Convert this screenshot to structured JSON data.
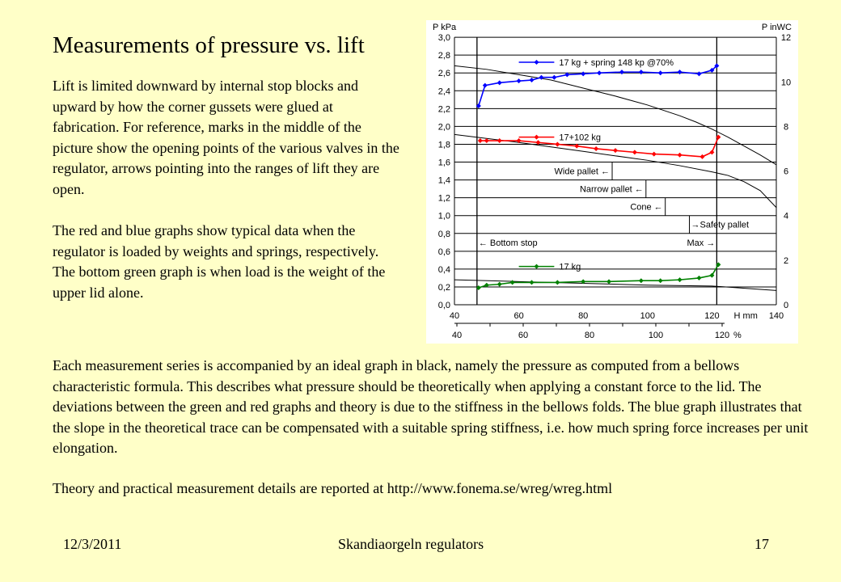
{
  "slide": {
    "title": "Measurements of pressure vs. lift",
    "paragraph1": "Lift is limited downward by internal stop blocks and upward by how the corner gussets were glued at fabrication. For reference, marks in the middle of the picture show the opening points of the various valves in the regulator, arrows pointing into the ranges of lift they are open.",
    "paragraph2": "The red and blue graphs show typical data when the regulator is loaded by weights and springs, respectively. The bottom green graph is when load is the weight of the upper lid alone.",
    "paragraph3": "Each measurement series is accompanied by an ideal graph in black, namely the pressure as computed from a bellows characteristic formula. This describes what pressure should be theoretically when applying a constant force to the lid. The deviations between the green and red graphs and theory is due to the stiffness in the bellows folds. The blue graph illustrates that the slope in the theoretical trace can be compensated with a suitable spring stiffness, i.e. how much spring force increases per unit elongation.",
    "paragraph4": "Theory and practical measurement  details are reported at http://www.fonema.se/wreg/wreg.html",
    "footer": {
      "date": "12/3/2011",
      "center": "Skandiaorgeln regulators",
      "page": "17"
    },
    "background": "#ffffc8"
  },
  "chart_data": {
    "type": "line",
    "xlabel": "H mm",
    "ylabel_left": "P kPa",
    "ylabel_right": "P inWC",
    "xlabel_secondary": "%",
    "xlim": [
      40,
      140
    ],
    "ylim": [
      0,
      3.0
    ],
    "ylim_right": [
      0,
      12
    ],
    "x_ticks": [
      "40",
      "60",
      "80",
      "100",
      "120",
      "140"
    ],
    "y_ticks": [
      "0,0",
      "0,2",
      "0,4",
      "0,6",
      "0,8",
      "1,0",
      "1,2",
      "1,4",
      "1,6",
      "1,8",
      "2,0",
      "2,2",
      "2,4",
      "2,6",
      "2,8",
      "3,0"
    ],
    "y_right_ticks": [
      "0",
      "2",
      "4",
      "6",
      "8",
      "10",
      "12"
    ],
    "pct_ticks": [
      "40",
      "60",
      "80",
      "100",
      "120"
    ],
    "grid": "horizontal",
    "series": [
      {
        "name": "17 kg + spring 148 kp @70%",
        "color": "#0000ff",
        "x": [
          47.5,
          49.5,
          54,
          60,
          64,
          67,
          71,
          75,
          80,
          85,
          92,
          98,
          104,
          110,
          116,
          120,
          121.5
        ],
        "y": [
          2.23,
          2.46,
          2.49,
          2.51,
          2.52,
          2.55,
          2.55,
          2.58,
          2.59,
          2.6,
          2.61,
          2.61,
          2.6,
          2.61,
          2.59,
          2.63,
          2.68
        ]
      },
      {
        "name": "17+102 kg",
        "color": "#ff0000",
        "x": [
          48,
          50,
          54,
          60,
          66,
          72,
          78,
          84,
          90,
          96,
          102,
          110,
          117,
          120,
          122
        ],
        "y": [
          1.84,
          1.84,
          1.84,
          1.84,
          1.82,
          1.8,
          1.78,
          1.75,
          1.73,
          1.71,
          1.69,
          1.68,
          1.66,
          1.71,
          1.88
        ]
      },
      {
        "name": "17 kg",
        "color": "#008000",
        "x": [
          47.5,
          50,
          54,
          58,
          64,
          72,
          80,
          88,
          98,
          104,
          110,
          116,
          120,
          122
        ],
        "y": [
          0.19,
          0.22,
          0.23,
          0.25,
          0.25,
          0.25,
          0.26,
          0.26,
          0.27,
          0.27,
          0.28,
          0.3,
          0.33,
          0.45
        ]
      }
    ],
    "theory_curves": [
      {
        "color": "#000000",
        "x": [
          40,
          50,
          60,
          70,
          80,
          90,
          100,
          110,
          115,
          120,
          125,
          130,
          135,
          140
        ],
        "y": [
          2.68,
          2.64,
          2.58,
          2.52,
          2.43,
          2.34,
          2.24,
          2.12,
          2.05,
          1.97,
          1.88,
          1.78,
          1.68,
          1.57
        ]
      },
      {
        "color": "#000000",
        "x": [
          40,
          60,
          80,
          100,
          110,
          120,
          125,
          130,
          135,
          140
        ],
        "y": [
          1.91,
          1.82,
          1.72,
          1.62,
          1.56,
          1.49,
          1.45,
          1.38,
          1.28,
          1.09
        ]
      },
      {
        "color": "#000000",
        "x": [
          40,
          60,
          80,
          100,
          120,
          140
        ],
        "y": [
          0.28,
          0.26,
          0.24,
          0.22,
          0.21,
          0.16
        ]
      }
    ],
    "limits": [
      {
        "label": "Bottom stop",
        "x": 47,
        "direction": "left"
      },
      {
        "label": "Max",
        "x": 121.5,
        "direction": "right"
      }
    ],
    "valve_marks": [
      {
        "label": "Wide pallet",
        "x": 89,
        "y_range": [
          1.4,
          1.6
        ],
        "direction": "left"
      },
      {
        "label": "Narrow pallet",
        "x": 99.5,
        "y_range": [
          1.2,
          1.4
        ],
        "direction": "left"
      },
      {
        "label": "Cone",
        "x": 105.5,
        "y_range": [
          1.0,
          1.2
        ],
        "direction": "left"
      },
      {
        "label": "Safety pallet",
        "x": 113,
        "y_range": [
          0.8,
          1.0
        ],
        "direction": "right"
      }
    ]
  }
}
